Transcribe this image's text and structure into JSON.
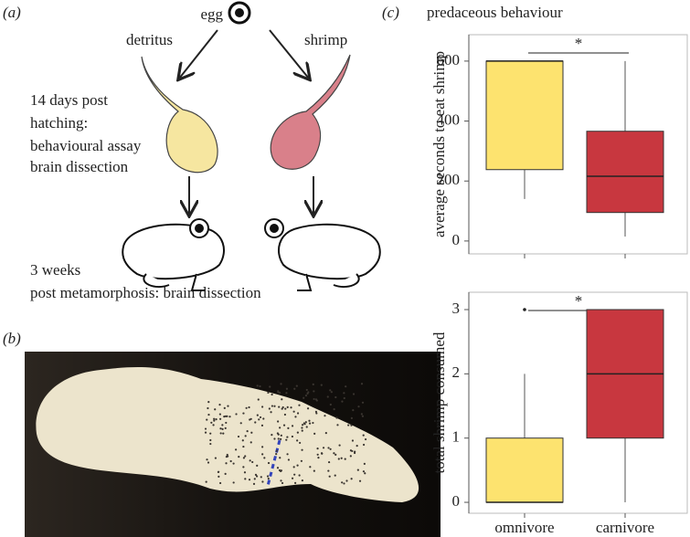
{
  "panel_a": {
    "label": "(a)",
    "egg": "egg",
    "detritus": "detritus",
    "shrimp": "shrimp",
    "stage1": [
      "14 days post",
      "hatching:",
      "behavioural assay",
      "brain dissection"
    ],
    "stage2": [
      "3 weeks",
      "post metamorphosis: brain dissection"
    ]
  },
  "panel_b": {
    "label": "(b)"
  },
  "panel_c": {
    "label": "(c)"
  },
  "chart_data": [
    {
      "type": "box",
      "title": "predaceous behaviour",
      "y_label": "average seconds to eat shrimp",
      "ylim": [
        -43,
        688
      ],
      "yticks": [
        0,
        200,
        400,
        600
      ],
      "annotation": "*",
      "boxes": [
        {
          "color": "#fde36f",
          "min": 140,
          "q1": 238,
          "median": 600,
          "q3": 600,
          "max": 600
        },
        {
          "color": "#c8373f",
          "min": 15,
          "q1": 95,
          "median": 216,
          "q3": 366,
          "max": 600
        }
      ]
    },
    {
      "type": "box",
      "y_label": "total shrimp consumed",
      "categories": [
        "omnivore",
        "carnivore"
      ],
      "ylim": [
        -0.17,
        3.27
      ],
      "yticks": [
        0,
        1,
        2,
        3
      ],
      "annotation": "*",
      "boxes": [
        {
          "color": "#fde36f",
          "min": 0,
          "q1": 0,
          "median": 0,
          "q3": 1,
          "max": 2,
          "outliers": [
            3
          ]
        },
        {
          "color": "#c8373f",
          "min": 0,
          "q1": 1,
          "median": 2,
          "q3": 3,
          "max": 3
        }
      ]
    }
  ]
}
